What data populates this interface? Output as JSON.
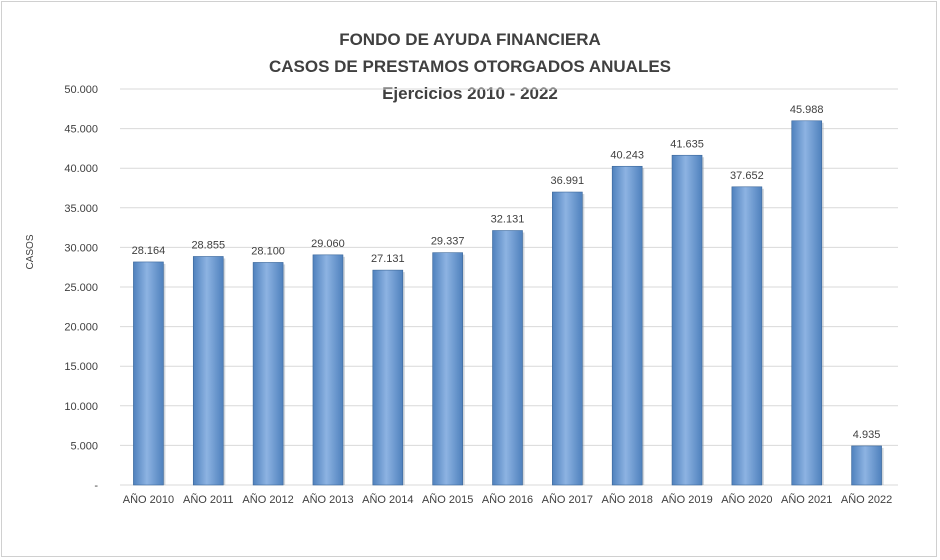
{
  "chart_data": {
    "type": "bar",
    "title": "FONDO DE AYUDA FINANCIERA",
    "subtitle": "CASOS DE PRESTAMOS OTORGADOS ANUALES",
    "subtitle2": "Ejercicios 2010 - 2022",
    "xlabel": "",
    "ylabel": "CASOS",
    "ylim": [
      0,
      50000
    ],
    "yticks": [
      0,
      5000,
      10000,
      15000,
      20000,
      25000,
      30000,
      35000,
      40000,
      45000,
      50000
    ],
    "ytick_labels": [
      "-",
      "5.000",
      "10.000",
      "15.000",
      "20.000",
      "25.000",
      "30.000",
      "35.000",
      "40.000",
      "45.000",
      "50.000"
    ],
    "categories": [
      "AÑO 2010",
      "AÑO 2011",
      "AÑO 2012",
      "AÑO 2013",
      "AÑO 2014",
      "AÑO 2015",
      "AÑO 2016",
      "AÑO 2017",
      "AÑO 2018",
      "AÑO 2019",
      "AÑO 2020",
      "AÑO 2021",
      "AÑO 2022"
    ],
    "values": [
      28164,
      28855,
      28100,
      29060,
      27131,
      29337,
      32131,
      36991,
      40243,
      41635,
      37652,
      45988,
      4935
    ],
    "value_labels": [
      "28.164",
      "28.855",
      "28.100",
      "29.060",
      "27.131",
      "29.337",
      "32.131",
      "36.991",
      "40.243",
      "41.635",
      "37.652",
      "45.988",
      "4.935"
    ],
    "grid": true,
    "legend": "none",
    "bar_color": "#4f81bd",
    "bar_color_light": "#8db3e2",
    "grid_color": "#d9d9d9"
  }
}
